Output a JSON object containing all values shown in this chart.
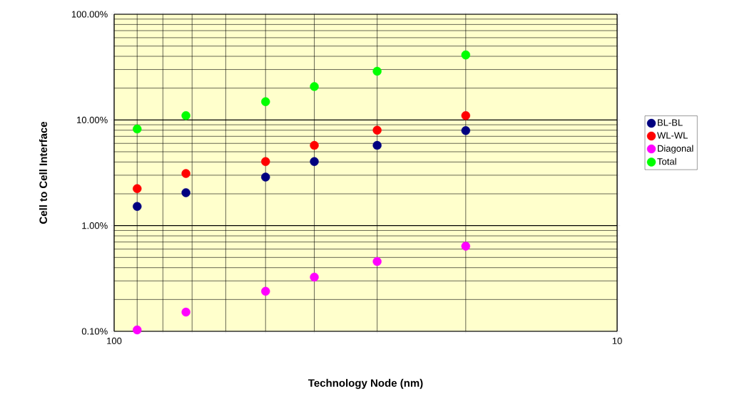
{
  "chart_data": {
    "type": "scatter",
    "xlabel": "Technology Node (nm)",
    "ylabel": "Cell to Cell Interface",
    "log": "xy",
    "grid": true,
    "legend": "right",
    "marker": "circle",
    "x": [
      90,
      72,
      50,
      40,
      30,
      20
    ],
    "xlim": [
      100,
      10
    ],
    "xticks": [
      100,
      10
    ],
    "ylim": [
      0.1,
      100
    ],
    "yticks": [
      {
        "value": 0.1,
        "label": "0.10%"
      },
      {
        "value": 1,
        "label": "1.00%"
      },
      {
        "value": 10,
        "label": "10.00%"
      },
      {
        "value": 100,
        "label": "100.00%"
      }
    ],
    "series": [
      {
        "name": "BL-BL",
        "color": "#000080",
        "values": [
          1.52,
          2.05,
          2.88,
          4.04,
          5.74,
          7.92
        ]
      },
      {
        "name": "WL-WL",
        "color": "#ff0000",
        "values": [
          2.24,
          3.11,
          4.04,
          5.74,
          8.0,
          11.0
        ]
      },
      {
        "name": "Diagonal",
        "color": "#ff00ff",
        "values": [
          0.103,
          0.152,
          0.239,
          0.326,
          0.457,
          0.64
        ]
      },
      {
        "name": "Total",
        "color": "#00ff00",
        "values": [
          8.2,
          11.0,
          14.9,
          20.7,
          28.9,
          41.2
        ]
      }
    ]
  }
}
